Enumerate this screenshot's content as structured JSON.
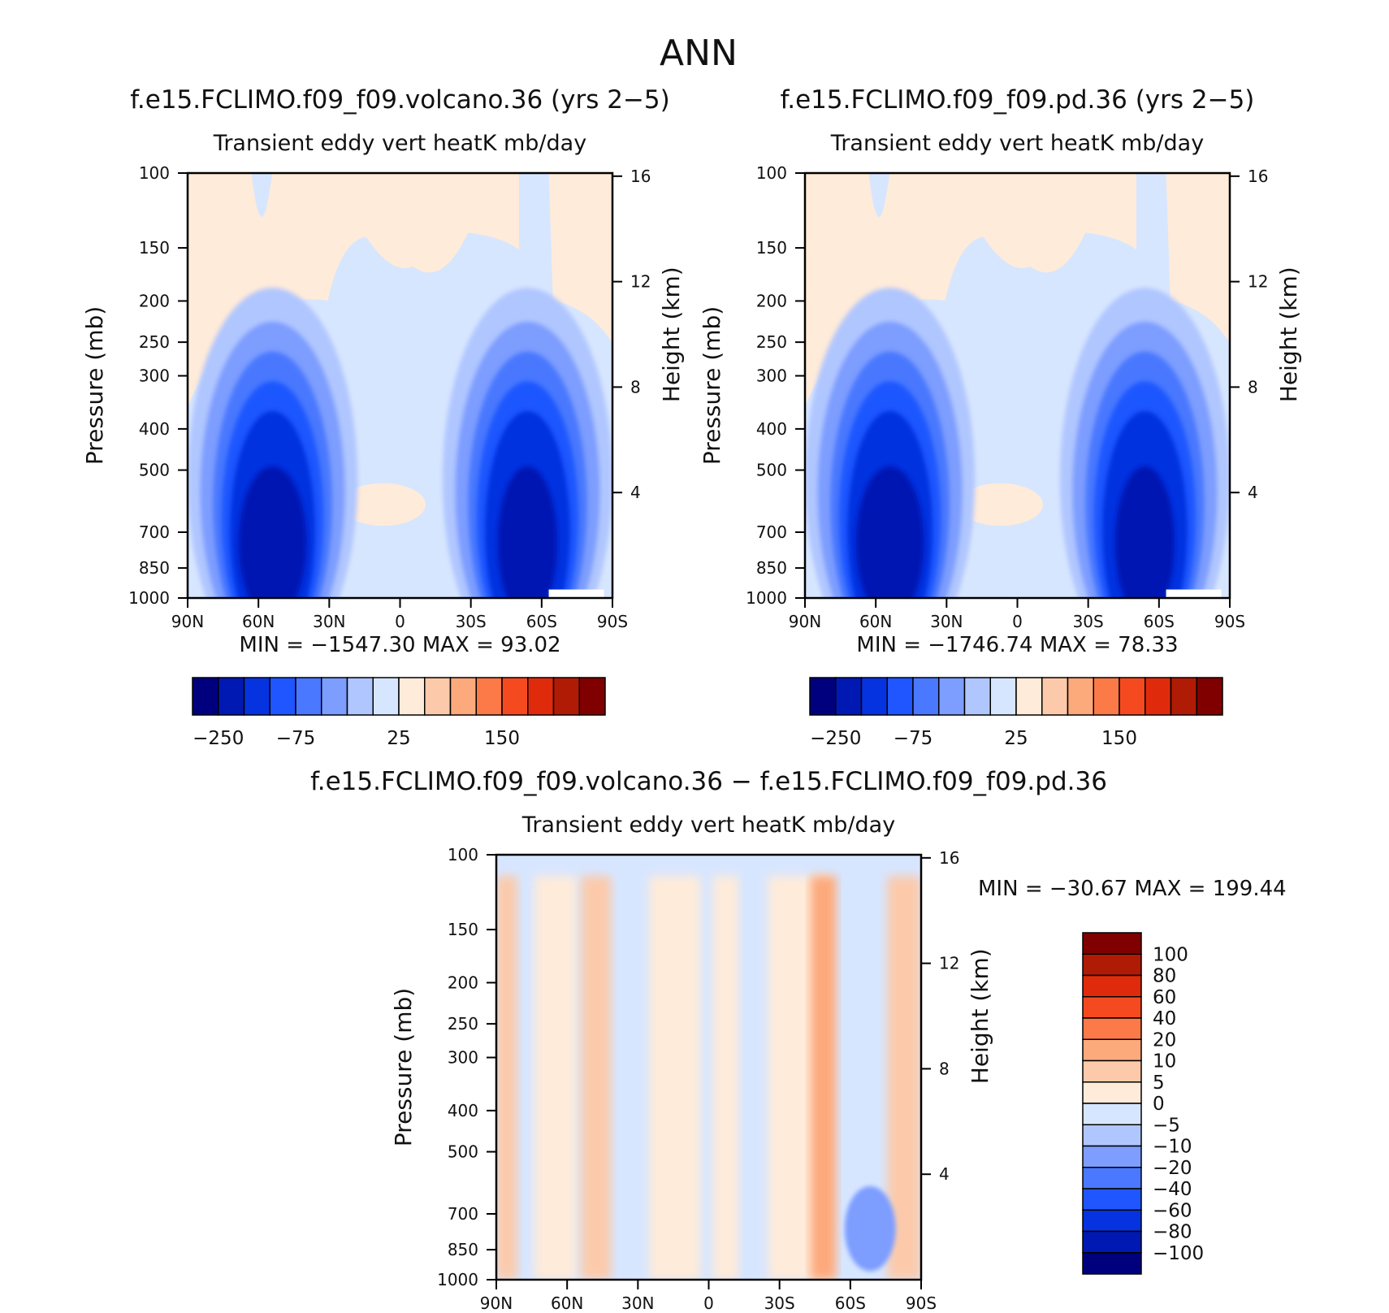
{
  "figure": {
    "title": "ANN",
    "colors": {
      "background": "#ffffff",
      "neg_dark": "#000080",
      "pos_dark": "#800000"
    }
  },
  "chart_data": [
    {
      "type": "heatmap",
      "title": "f.e15.FCLIMO.f09_f09.volcano.36 (yrs 2−5)",
      "subtitle": "Transient eddy vert heatK mb/day",
      "xlabel": "",
      "ylabel": "Pressure (mb)",
      "y2label": "Height (km)",
      "x_ticks": [
        "90N",
        "60N",
        "30N",
        "0",
        "30S",
        "60S",
        "90S"
      ],
      "x_range": [
        90,
        -90
      ],
      "y_ticks": [
        "100",
        "150",
        "200",
        "250",
        "300",
        "400",
        "500",
        "700",
        "850",
        "1000"
      ],
      "y_range": [
        1000,
        100
      ],
      "y_scale": "log",
      "y2_ticks": [
        "16",
        "12",
        "8",
        "4"
      ],
      "stats": "MIN = −1547.30   MAX =   93.02",
      "min": -1547.3,
      "max": 93.02,
      "colorbar": {
        "orientation": "horizontal",
        "labels": [
          "−250",
          "−75",
          "25",
          "150"
        ],
        "colors": [
          "#00007f",
          "#0019b3",
          "#0533e0",
          "#1f56ff",
          "#4a78ff",
          "#7d9dff",
          "#b0c6ff",
          "#d7e6ff",
          "#ffebd9",
          "#fccaaa",
          "#fca97c",
          "#fc7a48",
          "#f54a1f",
          "#df2b0b",
          "#b01b05",
          "#800000"
        ]
      }
    },
    {
      "type": "heatmap",
      "title": "f.e15.FCLIMO.f09_f09.pd.36 (yrs 2−5)",
      "subtitle": "Transient eddy vert heatK mb/day",
      "xlabel": "",
      "ylabel": "Pressure (mb)",
      "y2label": "Height (km)",
      "x_ticks": [
        "90N",
        "60N",
        "30N",
        "0",
        "30S",
        "60S",
        "90S"
      ],
      "x_range": [
        90,
        -90
      ],
      "y_ticks": [
        "100",
        "150",
        "200",
        "250",
        "300",
        "400",
        "500",
        "700",
        "850",
        "1000"
      ],
      "y_range": [
        1000,
        100
      ],
      "y_scale": "log",
      "y2_ticks": [
        "16",
        "12",
        "8",
        "4"
      ],
      "stats": "MIN = −1746.74   MAX =   78.33",
      "min": -1746.74,
      "max": 78.33,
      "colorbar": {
        "orientation": "horizontal",
        "labels": [
          "−250",
          "−75",
          "25",
          "150"
        ],
        "colors": [
          "#00007f",
          "#0019b3",
          "#0533e0",
          "#1f56ff",
          "#4a78ff",
          "#7d9dff",
          "#b0c6ff",
          "#d7e6ff",
          "#ffebd9",
          "#fccaaa",
          "#fca97c",
          "#fc7a48",
          "#f54a1f",
          "#df2b0b",
          "#b01b05",
          "#800000"
        ]
      }
    },
    {
      "type": "heatmap",
      "title": "f.e15.FCLIMO.f09_f09.volcano.36 − f.e15.FCLIMO.f09_f09.pd.36",
      "subtitle": "Transient eddy vert heatK mb/day",
      "xlabel": "",
      "ylabel": "Pressure (mb)",
      "y2label": "Height (km)",
      "x_ticks": [
        "90N",
        "60N",
        "30N",
        "0",
        "30S",
        "60S",
        "90S"
      ],
      "x_range": [
        90,
        -90
      ],
      "y_ticks": [
        "100",
        "150",
        "200",
        "250",
        "300",
        "400",
        "500",
        "700",
        "850",
        "1000"
      ],
      "y_range": [
        1000,
        100
      ],
      "y_scale": "log",
      "y2_ticks": [
        "16",
        "12",
        "8",
        "4"
      ],
      "stats": "MIN = −30.67   MAX = 199.44",
      "min": -30.67,
      "max": 199.44,
      "colorbar": {
        "orientation": "vertical",
        "labels": [
          "100",
          "80",
          "60",
          "40",
          "20",
          "10",
          "5",
          "0",
          "−5",
          "−10",
          "−20",
          "−40",
          "−60",
          "−80",
          "−100"
        ],
        "colors": [
          "#800000",
          "#b01b05",
          "#df2b0b",
          "#f54a1f",
          "#fc7a48",
          "#fca97c",
          "#fccaaa",
          "#ffebd9",
          "#d7e6ff",
          "#b0c6ff",
          "#7d9dff",
          "#4a78ff",
          "#1f56ff",
          "#0533e0",
          "#0019b3",
          "#00007f"
        ]
      }
    }
  ]
}
